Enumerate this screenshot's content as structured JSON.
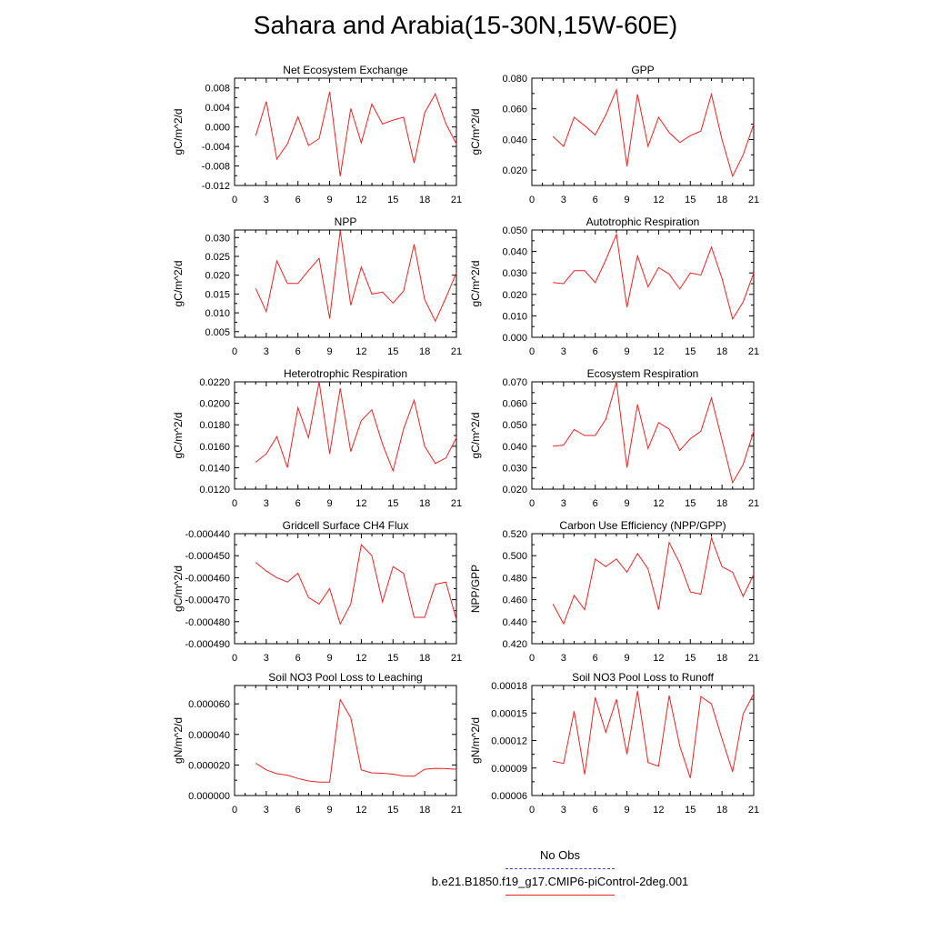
{
  "title": "Sahara and Arabia(15-30N,15W-60E)",
  "legend": {
    "no_obs": "No Obs",
    "case": "b.e21.B1850.f19_g17.CMIP6-piControl-2deg.001",
    "no_obs_color": "#4444cc",
    "case_color": "#ee2222"
  },
  "chart_data": [
    {
      "type": "line",
      "title": "Net Ecosystem Exchange",
      "ylabel": "gC/m^2/d",
      "xlim": [
        0,
        21
      ],
      "ylim": [
        -0.012,
        0.01
      ],
      "xticks": [
        "0",
        "3",
        "6",
        "9",
        "12",
        "15",
        "18",
        "21"
      ],
      "yticks": [
        -0.012,
        -0.008,
        -0.004,
        0.0,
        0.004,
        0.008
      ],
      "ytick_labels": [
        "-0.012",
        "-0.008",
        "-0.004",
        "0.000",
        "0.004",
        "0.008"
      ],
      "x": [
        2,
        3,
        4,
        5,
        6,
        7,
        8,
        9,
        10,
        11,
        12,
        13,
        14,
        15,
        16,
        17,
        18,
        19,
        20,
        21
      ],
      "series": [
        {
          "color": "#ee2222",
          "values": [
            -0.0018,
            0.0052,
            -0.0066,
            -0.0035,
            0.0021,
            -0.0038,
            -0.0024,
            0.0072,
            -0.0101,
            0.0038,
            -0.0033,
            0.0047,
            0.0006,
            0.0014,
            0.002,
            -0.0074,
            0.0029,
            0.0068,
            0.0007,
            -0.0035
          ]
        }
      ]
    },
    {
      "type": "line",
      "title": "GPP",
      "ylabel": "gC/m^2/d",
      "xlim": [
        0,
        21
      ],
      "ylim": [
        0.01,
        0.08
      ],
      "xticks": [
        "0",
        "3",
        "6",
        "9",
        "12",
        "15",
        "18",
        "21"
      ],
      "yticks": [
        0.02,
        0.04,
        0.06,
        0.08
      ],
      "ytick_labels": [
        "0.020",
        "0.040",
        "0.060",
        "0.080"
      ],
      "x": [
        2,
        3,
        4,
        5,
        6,
        7,
        8,
        9,
        10,
        11,
        12,
        13,
        14,
        15,
        16,
        17,
        18,
        19,
        20,
        21
      ],
      "series": [
        {
          "color": "#ee2222",
          "values": [
            0.042,
            0.0355,
            0.0545,
            0.049,
            0.043,
            0.056,
            0.0725,
            0.0225,
            0.0695,
            0.0355,
            0.0545,
            0.0445,
            0.038,
            0.0425,
            0.0455,
            0.0695,
            0.04,
            0.016,
            0.03,
            0.05
          ]
        }
      ]
    },
    {
      "type": "line",
      "title": "NPP",
      "ylabel": "gC/m^2/d",
      "xlim": [
        0,
        21
      ],
      "ylim": [
        0.0035,
        0.032
      ],
      "xticks": [
        "0",
        "3",
        "6",
        "9",
        "12",
        "15",
        "18",
        "21"
      ],
      "yticks": [
        0.005,
        0.01,
        0.015,
        0.02,
        0.025,
        0.03
      ],
      "ytick_labels": [
        "0.005",
        "0.010",
        "0.015",
        "0.020",
        "0.025",
        "0.030"
      ],
      "x": [
        2,
        3,
        4,
        5,
        6,
        7,
        8,
        9,
        10,
        11,
        12,
        13,
        14,
        15,
        16,
        17,
        18,
        19,
        20,
        21
      ],
      "series": [
        {
          "color": "#ee2222",
          "values": [
            0.0165,
            0.0103,
            0.0238,
            0.0178,
            0.0178,
            0.0212,
            0.0245,
            0.0085,
            0.0318,
            0.012,
            0.0222,
            0.015,
            0.0155,
            0.0126,
            0.0158,
            0.0282,
            0.0135,
            0.0078,
            0.014,
            0.0206
          ]
        }
      ]
    },
    {
      "type": "line",
      "title": "Autotrophic Respiration",
      "ylabel": "gC/m^2/d",
      "xlim": [
        0,
        21
      ],
      "ylim": [
        0.0,
        0.05
      ],
      "xticks": [
        "0",
        "3",
        "6",
        "9",
        "12",
        "15",
        "18",
        "21"
      ],
      "yticks": [
        0.0,
        0.01,
        0.02,
        0.03,
        0.04,
        0.05
      ],
      "ytick_labels": [
        "0.000",
        "0.010",
        "0.020",
        "0.030",
        "0.040",
        "0.050"
      ],
      "x": [
        2,
        3,
        4,
        5,
        6,
        7,
        8,
        9,
        10,
        11,
        12,
        13,
        14,
        15,
        16,
        17,
        18,
        19,
        20,
        21
      ],
      "series": [
        {
          "color": "#ee2222",
          "values": [
            0.0255,
            0.025,
            0.031,
            0.031,
            0.0255,
            0.036,
            0.048,
            0.014,
            0.038,
            0.0235,
            0.0325,
            0.0295,
            0.0225,
            0.03,
            0.029,
            0.042,
            0.0275,
            0.0085,
            0.0165,
            0.03
          ]
        }
      ]
    },
    {
      "type": "line",
      "title": "Heterotrophic Respiration",
      "ylabel": "gC/m^2/d",
      "xlim": [
        0,
        21
      ],
      "ylim": [
        0.012,
        0.022
      ],
      "xticks": [
        "0",
        "3",
        "6",
        "9",
        "12",
        "15",
        "18",
        "21"
      ],
      "yticks": [
        0.012,
        0.014,
        0.016,
        0.018,
        0.02,
        0.022
      ],
      "ytick_labels": [
        "0.0120",
        "0.0140",
        "0.0160",
        "0.0180",
        "0.0200",
        "0.0220"
      ],
      "x": [
        2,
        3,
        4,
        5,
        6,
        7,
        8,
        9,
        10,
        11,
        12,
        13,
        14,
        15,
        16,
        17,
        18,
        19,
        20,
        21
      ],
      "series": [
        {
          "color": "#ee2222",
          "values": [
            0.0145,
            0.0153,
            0.0169,
            0.014,
            0.0196,
            0.0168,
            0.022,
            0.0153,
            0.0214,
            0.0155,
            0.0184,
            0.0194,
            0.0162,
            0.0137,
            0.0176,
            0.0203,
            0.016,
            0.0144,
            0.0149,
            0.0168
          ]
        }
      ]
    },
    {
      "type": "line",
      "title": "Ecosystem Respiration",
      "ylabel": "gC/m^2/d",
      "xlim": [
        0,
        21
      ],
      "ylim": [
        0.02,
        0.07
      ],
      "xticks": [
        "0",
        "3",
        "6",
        "9",
        "12",
        "15",
        "18",
        "21"
      ],
      "yticks": [
        0.02,
        0.03,
        0.04,
        0.05,
        0.06,
        0.07
      ],
      "ytick_labels": [
        "0.020",
        "0.030",
        "0.040",
        "0.050",
        "0.060",
        "0.070"
      ],
      "x": [
        2,
        3,
        4,
        5,
        6,
        7,
        8,
        9,
        10,
        11,
        12,
        13,
        14,
        15,
        16,
        17,
        18,
        19,
        20,
        21
      ],
      "series": [
        {
          "color": "#ee2222",
          "values": [
            0.04,
            0.0405,
            0.0478,
            0.045,
            0.045,
            0.0525,
            0.07,
            0.03,
            0.0595,
            0.039,
            0.051,
            0.048,
            0.038,
            0.0435,
            0.047,
            0.0625,
            0.043,
            0.023,
            0.0315,
            0.047
          ]
        }
      ]
    },
    {
      "type": "line",
      "title": "Gridcell Surface CH4 Flux",
      "ylabel": "gC/m^2/d",
      "xlim": [
        0,
        21
      ],
      "ylim": [
        -0.00049,
        -0.00044
      ],
      "xticks": [
        "0",
        "3",
        "6",
        "9",
        "12",
        "15",
        "18",
        "21"
      ],
      "yticks": [
        -0.00049,
        -0.00048,
        -0.00047,
        -0.00046,
        -0.00045,
        -0.00044
      ],
      "ytick_labels": [
        "-0.000490",
        "-0.000480",
        "-0.000470",
        "-0.000460",
        "-0.000450",
        "-0.000440"
      ],
      "x": [
        2,
        3,
        4,
        5,
        6,
        7,
        8,
        9,
        10,
        11,
        12,
        13,
        14,
        15,
        16,
        17,
        18,
        19,
        20,
        21
      ],
      "series": [
        {
          "color": "#ee2222",
          "values": [
            -0.000453,
            -0.000457,
            -0.00046,
            -0.000462,
            -0.000458,
            -0.000469,
            -0.000472,
            -0.000465,
            -0.000481,
            -0.000472,
            -0.000445,
            -0.00045,
            -0.000471,
            -0.000455,
            -0.000458,
            -0.000478,
            -0.000478,
            -0.000463,
            -0.000462,
            -0.000479
          ]
        }
      ]
    },
    {
      "type": "line",
      "title": "Carbon Use Efficiency (NPP/GPP)",
      "ylabel": "NPP/GPP",
      "xlim": [
        0,
        21
      ],
      "ylim": [
        0.42,
        0.52
      ],
      "xticks": [
        "0",
        "3",
        "6",
        "9",
        "12",
        "15",
        "18",
        "21"
      ],
      "yticks": [
        0.42,
        0.44,
        0.46,
        0.48,
        0.5,
        0.52
      ],
      "ytick_labels": [
        "0.420",
        "0.440",
        "0.460",
        "0.480",
        "0.500",
        "0.520"
      ],
      "x": [
        2,
        3,
        4,
        5,
        6,
        7,
        8,
        9,
        10,
        11,
        12,
        13,
        14,
        15,
        16,
        17,
        18,
        19,
        20,
        21
      ],
      "series": [
        {
          "color": "#ee2222",
          "values": [
            0.456,
            0.438,
            0.464,
            0.451,
            0.497,
            0.49,
            0.497,
            0.485,
            0.502,
            0.488,
            0.451,
            0.512,
            0.493,
            0.467,
            0.465,
            0.516,
            0.49,
            0.485,
            0.463,
            0.483
          ]
        }
      ]
    },
    {
      "type": "line",
      "title": "Soil NO3 Pool Loss to Leaching",
      "ylabel": "gN/m^2/d",
      "xlim": [
        0,
        21
      ],
      "ylim": [
        0.0,
        7.2e-05
      ],
      "xticks": [
        "0",
        "3",
        "6",
        "9",
        "12",
        "15",
        "18",
        "21"
      ],
      "yticks": [
        0.0,
        2e-05,
        4e-05,
        6e-05
      ],
      "ytick_labels": [
        "0.000000",
        "0.000020",
        "0.000040",
        "0.000060"
      ],
      "x": [
        2,
        3,
        4,
        5,
        6,
        7,
        8,
        9,
        10,
        11,
        12,
        13,
        14,
        15,
        16,
        17,
        18,
        19,
        20,
        21
      ],
      "series": [
        {
          "color": "#ee2222",
          "values": [
            2.12e-05,
            1.68e-05,
            1.43e-05,
            1.33e-05,
            1.12e-05,
            9.5e-06,
            8.8e-06,
            8.8e-06,
            6.28e-05,
            5.1e-05,
            1.68e-05,
            1.48e-05,
            1.46e-05,
            1.4e-05,
            1.28e-05,
            1.26e-05,
            1.72e-05,
            1.78e-05,
            1.76e-05,
            1.72e-05
          ]
        }
      ]
    },
    {
      "type": "line",
      "title": "Soil NO3 Pool Loss to Runoff",
      "ylabel": "gN/m^2/d",
      "xlim": [
        0,
        21
      ],
      "ylim": [
        6e-05,
        0.00018
      ],
      "xticks": [
        "0",
        "3",
        "6",
        "9",
        "12",
        "15",
        "18",
        "21"
      ],
      "yticks": [
        6e-05,
        9e-05,
        0.00012,
        0.00015,
        0.00018
      ],
      "ytick_labels": [
        "0.00006",
        "0.00009",
        "0.00012",
        "0.00015",
        "0.00018"
      ],
      "x": [
        2,
        3,
        4,
        5,
        6,
        7,
        8,
        9,
        10,
        11,
        12,
        13,
        14,
        15,
        16,
        17,
        18,
        19,
        20,
        21
      ],
      "series": [
        {
          "color": "#ee2222",
          "values": [
            9.75e-05,
            9.5e-05,
            0.000152,
            8.3e-05,
            0.000167,
            0.000129,
            0.000165,
            0.000105,
            0.000174,
            9.6e-05,
            9.2e-05,
            0.000169,
            0.000114,
            7.9e-05,
            0.000168,
            0.00016,
            0.000122,
            8.6e-05,
            0.000149,
            0.000171
          ]
        }
      ]
    }
  ]
}
